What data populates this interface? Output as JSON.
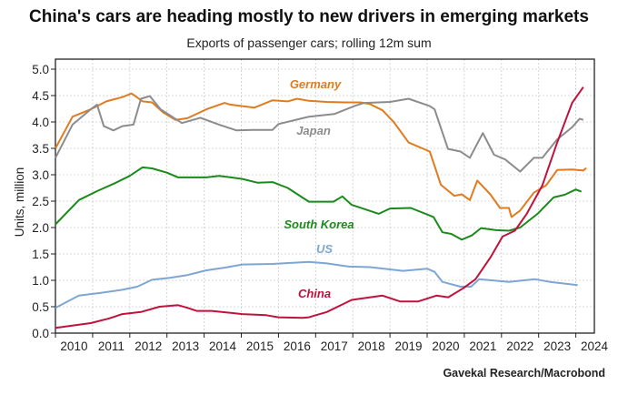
{
  "chart_data": {
    "type": "line",
    "title": "China's cars are heading mostly to new drivers in emerging markets",
    "subtitle": "Exports of passenger cars; rolling 12m sum",
    "xlabel": "",
    "ylabel": "Units, million",
    "xlim": [
      2010,
      2024.6
    ],
    "ylim": [
      0,
      5.0
    ],
    "grid": true,
    "x_ticks": [
      "2010",
      "2011",
      "2012",
      "2013",
      "2014",
      "2015",
      "2016",
      "2017",
      "2018",
      "2019",
      "2020",
      "2021",
      "2022",
      "2023",
      "2024"
    ],
    "y_ticks": [
      "0.0",
      "0.5",
      "1.0",
      "1.5",
      "2.0",
      "2.5",
      "3.0",
      "3.5",
      "4.0",
      "4.5",
      "5.0"
    ],
    "source": "Gavekal Research/Macrobond",
    "series": [
      {
        "name": "Germany",
        "color": "#e07b20",
        "points": [
          [
            2010,
            3.5
          ],
          [
            2010.46,
            4.1
          ],
          [
            2010.95,
            4.24
          ],
          [
            2011.37,
            4.39
          ],
          [
            2011.8,
            4.47
          ],
          [
            2012.05,
            4.54
          ],
          [
            2012.35,
            4.39
          ],
          [
            2012.6,
            4.37
          ],
          [
            2012.9,
            4.18
          ],
          [
            2013.23,
            4.04
          ],
          [
            2013.55,
            4.07
          ],
          [
            2014.06,
            4.24
          ],
          [
            2014.55,
            4.36
          ],
          [
            2014.7,
            4.33
          ],
          [
            2015.03,
            4.3
          ],
          [
            2015.35,
            4.27
          ],
          [
            2015.84,
            4.41
          ],
          [
            2016.25,
            4.39
          ],
          [
            2016.5,
            4.44
          ],
          [
            2016.82,
            4.4
          ],
          [
            2017.3,
            4.38
          ],
          [
            2017.8,
            4.37
          ],
          [
            2018.2,
            4.37
          ],
          [
            2018.46,
            4.34
          ],
          [
            2018.8,
            4.22
          ],
          [
            2019.1,
            4.0
          ],
          [
            2019.5,
            3.61
          ],
          [
            2020.07,
            3.44
          ],
          [
            2020.37,
            2.81
          ],
          [
            2020.73,
            2.6
          ],
          [
            2020.93,
            2.63
          ],
          [
            2021.15,
            2.52
          ],
          [
            2021.35,
            2.89
          ],
          [
            2021.7,
            2.63
          ],
          [
            2021.96,
            2.37
          ],
          [
            2022.2,
            2.37
          ],
          [
            2022.27,
            2.2
          ],
          [
            2022.5,
            2.32
          ],
          [
            2022.87,
            2.66
          ],
          [
            2023.2,
            2.8
          ],
          [
            2023.5,
            3.09
          ],
          [
            2023.9,
            3.1
          ],
          [
            2024.2,
            3.08
          ],
          [
            2024.28,
            3.13
          ]
        ]
      },
      {
        "name": "Japan",
        "color": "#8c8c8c",
        "points": [
          [
            2010,
            3.32
          ],
          [
            2010.46,
            3.95
          ],
          [
            2010.95,
            4.24
          ],
          [
            2011.12,
            4.33
          ],
          [
            2011.3,
            3.92
          ],
          [
            2011.56,
            3.84
          ],
          [
            2011.8,
            3.92
          ],
          [
            2012.1,
            3.95
          ],
          [
            2012.3,
            4.44
          ],
          [
            2012.54,
            4.49
          ],
          [
            2012.83,
            4.24
          ],
          [
            2013.4,
            3.98
          ],
          [
            2013.9,
            4.08
          ],
          [
            2014.4,
            3.95
          ],
          [
            2014.87,
            3.84
          ],
          [
            2015.3,
            3.85
          ],
          [
            2015.84,
            3.85
          ],
          [
            2016.0,
            3.96
          ],
          [
            2016.65,
            4.07
          ],
          [
            2016.82,
            4.1
          ],
          [
            2017.5,
            4.15
          ],
          [
            2018.04,
            4.3
          ],
          [
            2018.3,
            4.36
          ],
          [
            2019.0,
            4.38
          ],
          [
            2019.5,
            4.44
          ],
          [
            2020.07,
            4.3
          ],
          [
            2020.2,
            4.24
          ],
          [
            2020.56,
            3.49
          ],
          [
            2020.9,
            3.44
          ],
          [
            2021.15,
            3.32
          ],
          [
            2021.5,
            3.79
          ],
          [
            2021.8,
            3.38
          ],
          [
            2022.1,
            3.29
          ],
          [
            2022.5,
            3.06
          ],
          [
            2022.87,
            3.32
          ],
          [
            2023.1,
            3.32
          ],
          [
            2023.5,
            3.67
          ],
          [
            2023.9,
            3.9
          ],
          [
            2024.1,
            4.06
          ],
          [
            2024.2,
            4.04
          ]
        ]
      },
      {
        "name": "South Korea",
        "color": "#1a8a1a",
        "points": [
          [
            2010,
            2.06
          ],
          [
            2010.63,
            2.52
          ],
          [
            2011.12,
            2.69
          ],
          [
            2011.6,
            2.84
          ],
          [
            2012.0,
            2.98
          ],
          [
            2012.34,
            3.14
          ],
          [
            2012.6,
            3.12
          ],
          [
            2013.0,
            3.04
          ],
          [
            2013.3,
            2.95
          ],
          [
            2014.06,
            2.95
          ],
          [
            2014.4,
            2.98
          ],
          [
            2015.03,
            2.92
          ],
          [
            2015.43,
            2.85
          ],
          [
            2015.84,
            2.86
          ],
          [
            2016.25,
            2.75
          ],
          [
            2016.82,
            2.49
          ],
          [
            2017.48,
            2.49
          ],
          [
            2017.72,
            2.59
          ],
          [
            2017.97,
            2.43
          ],
          [
            2018.7,
            2.26
          ],
          [
            2019.0,
            2.36
          ],
          [
            2019.56,
            2.37
          ],
          [
            2020.17,
            2.2
          ],
          [
            2020.41,
            1.91
          ],
          [
            2020.65,
            1.88
          ],
          [
            2020.93,
            1.77
          ],
          [
            2021.2,
            1.85
          ],
          [
            2021.45,
            1.99
          ],
          [
            2021.85,
            1.95
          ],
          [
            2022.2,
            1.94
          ],
          [
            2022.5,
            2.0
          ],
          [
            2022.97,
            2.26
          ],
          [
            2023.4,
            2.57
          ],
          [
            2023.7,
            2.62
          ],
          [
            2024.0,
            2.72
          ],
          [
            2024.15,
            2.68
          ]
        ]
      },
      {
        "name": "US",
        "color": "#7ea6d4",
        "points": [
          [
            2010,
            0.48
          ],
          [
            2010.63,
            0.71
          ],
          [
            2011.2,
            0.76
          ],
          [
            2011.8,
            0.82
          ],
          [
            2012.2,
            0.88
          ],
          [
            2012.6,
            1.01
          ],
          [
            2013.1,
            1.05
          ],
          [
            2013.55,
            1.1
          ],
          [
            2014.06,
            1.19
          ],
          [
            2014.55,
            1.24
          ],
          [
            2015.03,
            1.3
          ],
          [
            2015.84,
            1.31
          ],
          [
            2016.82,
            1.35
          ],
          [
            2017.3,
            1.32
          ],
          [
            2017.9,
            1.26
          ],
          [
            2018.46,
            1.25
          ],
          [
            2019.35,
            1.18
          ],
          [
            2020.0,
            1.22
          ],
          [
            2020.2,
            1.16
          ],
          [
            2020.41,
            0.97
          ],
          [
            2020.9,
            0.88
          ],
          [
            2021.18,
            0.88
          ],
          [
            2021.4,
            1.02
          ],
          [
            2022.2,
            0.97
          ],
          [
            2022.9,
            1.02
          ],
          [
            2023.3,
            0.97
          ],
          [
            2024.05,
            0.91
          ]
        ]
      },
      {
        "name": "China",
        "color": "#c0123c",
        "points": [
          [
            2010,
            0.1
          ],
          [
            2010.95,
            0.19
          ],
          [
            2011.45,
            0.28
          ],
          [
            2011.8,
            0.36
          ],
          [
            2012.3,
            0.4
          ],
          [
            2012.8,
            0.5
          ],
          [
            2013.3,
            0.53
          ],
          [
            2013.55,
            0.48
          ],
          [
            2013.8,
            0.42
          ],
          [
            2014.2,
            0.42
          ],
          [
            2015.03,
            0.36
          ],
          [
            2015.67,
            0.34
          ],
          [
            2016.0,
            0.3
          ],
          [
            2016.65,
            0.29
          ],
          [
            2016.82,
            0.3
          ],
          [
            2017.3,
            0.4
          ],
          [
            2017.97,
            0.63
          ],
          [
            2018.8,
            0.71
          ],
          [
            2019.27,
            0.6
          ],
          [
            2019.76,
            0.6
          ],
          [
            2020.25,
            0.71
          ],
          [
            2020.57,
            0.68
          ],
          [
            2020.97,
            0.85
          ],
          [
            2021.3,
            1.02
          ],
          [
            2021.7,
            1.43
          ],
          [
            2022.03,
            1.83
          ],
          [
            2022.36,
            1.94
          ],
          [
            2022.68,
            2.26
          ],
          [
            2023.1,
            2.8
          ],
          [
            2023.5,
            3.61
          ],
          [
            2023.9,
            4.36
          ],
          [
            2024.2,
            4.66
          ]
        ]
      }
    ]
  }
}
